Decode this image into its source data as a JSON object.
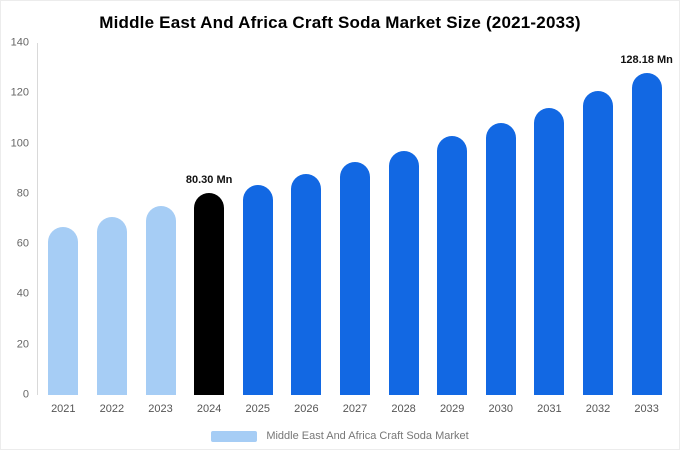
{
  "chart_data": {
    "type": "bar",
    "title": "Middle East And Africa Craft Soda Market Size (2021-2033)",
    "categories": [
      "2021",
      "2022",
      "2023",
      "2024",
      "2025",
      "2026",
      "2027",
      "2028",
      "2029",
      "2030",
      "2031",
      "2032",
      "2033"
    ],
    "values": [
      67,
      71,
      75,
      80.3,
      83.5,
      88,
      92.5,
      97,
      103,
      108,
      114,
      121,
      128.18
    ],
    "unit": "Mn",
    "xlabel": "",
    "ylabel": "",
    "ylim": [
      0,
      140
    ],
    "y_ticks": [
      0,
      20,
      40,
      60,
      80,
      100,
      120,
      140
    ],
    "grid": false,
    "legend_position": "bottom",
    "bar_colors": [
      "#a6cdf5",
      "#a6cdf5",
      "#a6cdf5",
      "#000000",
      "#1268e3",
      "#1268e3",
      "#1268e3",
      "#1268e3",
      "#1268e3",
      "#1268e3",
      "#1268e3",
      "#1268e3",
      "#1268e3"
    ],
    "annotations": [
      {
        "index": 3,
        "text": "80.30 Mn"
      },
      {
        "index": 12,
        "text": "128.18 Mn"
      }
    ]
  },
  "legend": {
    "label": "Middle East And Africa Craft Soda Market",
    "swatch_color": "#a6cdf5"
  },
  "colors": {
    "light_blue": "#a6cdf5",
    "blue": "#1268e3",
    "highlight": "#000000",
    "axis_text": "#666666",
    "title_text": "#000000",
    "background": "#ffffff"
  }
}
